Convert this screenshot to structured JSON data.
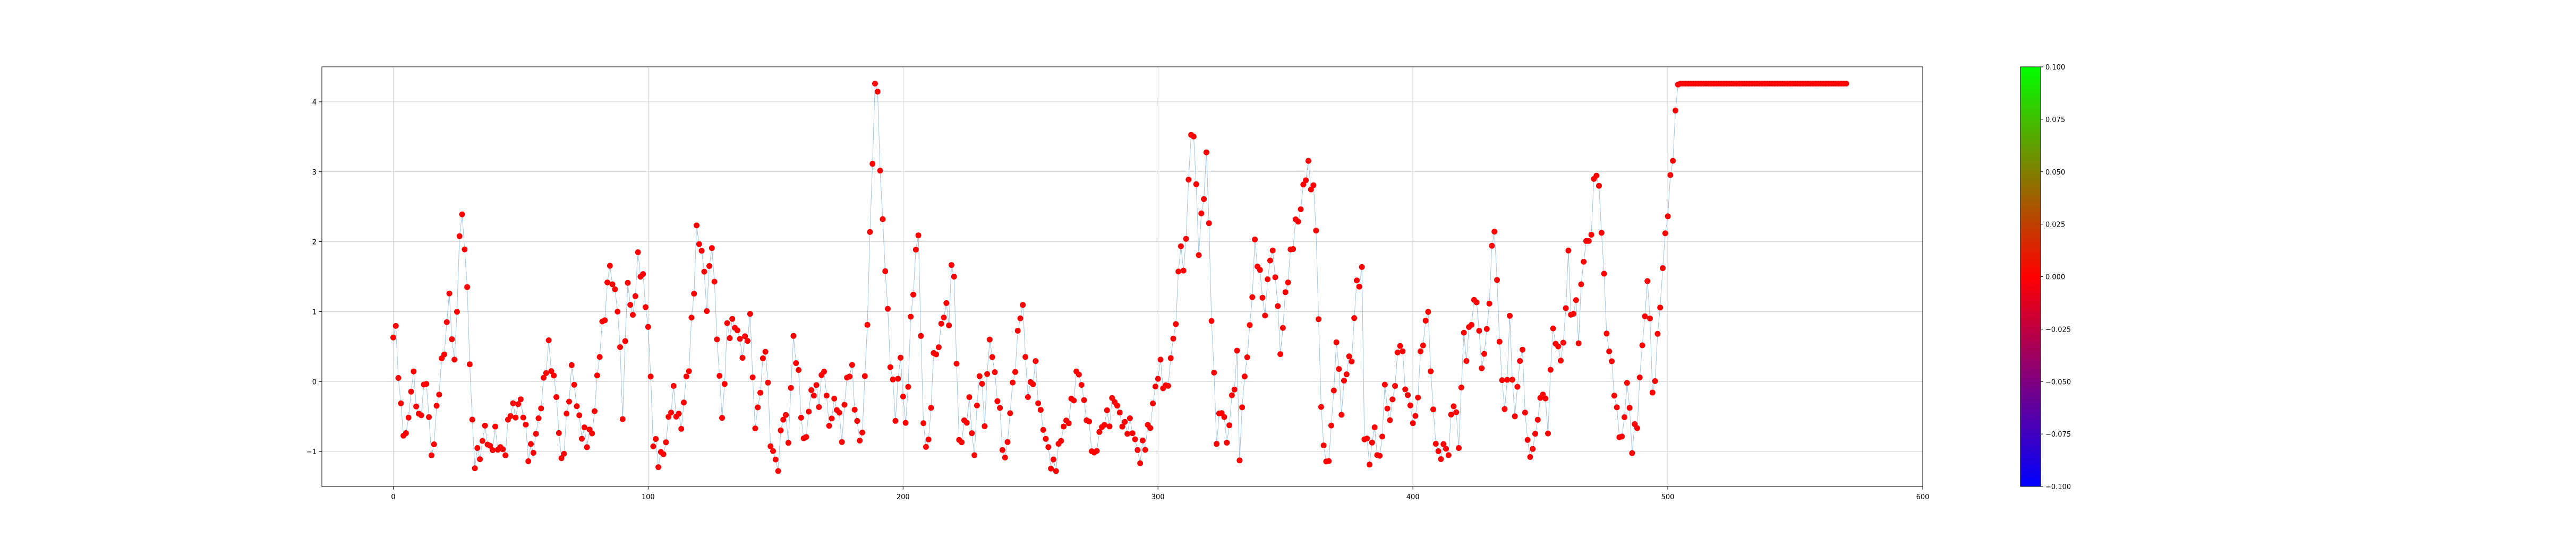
{
  "chart_data": {
    "type": "scatter",
    "title": "",
    "xlabel": "",
    "ylabel": "",
    "xlim": [
      -28,
      600
    ],
    "ylim": [
      -1.5,
      4.5
    ],
    "grid": true,
    "x_ticks": [
      0,
      100,
      200,
      300,
      400,
      500,
      600
    ],
    "y_ticks": [
      -1,
      0,
      1,
      2,
      3,
      4
    ],
    "x_tick_labels": [
      "0",
      "100",
      "200",
      "300",
      "400",
      "500",
      "600"
    ],
    "y_tick_labels": [
      "−1",
      "0",
      "1",
      "2",
      "3",
      "4"
    ],
    "marker_color": "#ff0000",
    "line_color": "#9ec5e8",
    "anchors": [
      [
        0,
        0.55
      ],
      [
        1,
        0.7
      ],
      [
        3,
        -0.35
      ],
      [
        5,
        -0.85
      ],
      [
        8,
        0.1
      ],
      [
        10,
        -0.5
      ],
      [
        13,
        -0.05
      ],
      [
        15,
        -1.05
      ],
      [
        18,
        -0.1
      ],
      [
        20,
        0.4
      ],
      [
        22,
        1.3
      ],
      [
        24,
        0.2
      ],
      [
        26,
        1.9
      ],
      [
        27,
        2.45
      ],
      [
        29,
        1.4
      ],
      [
        31,
        -0.7
      ],
      [
        32,
        -1.2
      ],
      [
        34,
        -1.0
      ],
      [
        36,
        -0.6
      ],
      [
        38,
        -1.1
      ],
      [
        40,
        -0.75
      ],
      [
        44,
        -1.05
      ],
      [
        46,
        -0.4
      ],
      [
        50,
        -0.3
      ],
      [
        53,
        -1.0
      ],
      [
        56,
        -0.8
      ],
      [
        58,
        -0.4
      ],
      [
        60,
        0.3
      ],
      [
        61,
        0.55
      ],
      [
        64,
        -0.3
      ],
      [
        66,
        -1.15
      ],
      [
        70,
        0.1
      ],
      [
        73,
        -0.5
      ],
      [
        76,
        -0.9
      ],
      [
        78,
        -0.75
      ],
      [
        81,
        0.5
      ],
      [
        83,
        0.9
      ],
      [
        85,
        1.7
      ],
      [
        88,
        1.1
      ],
      [
        90,
        -0.5
      ],
      [
        92,
        1.5
      ],
      [
        94,
        0.9
      ],
      [
        96,
        1.65
      ],
      [
        98,
        1.5
      ],
      [
        100,
        0.85
      ],
      [
        102,
        -0.9
      ],
      [
        104,
        -1.1
      ],
      [
        107,
        -0.85
      ],
      [
        110,
        -0.2
      ],
      [
        113,
        -0.6
      ],
      [
        116,
        0.2
      ],
      [
        118,
        1.45
      ],
      [
        119,
        2.2
      ],
      [
        121,
        1.8
      ],
      [
        123,
        1.1
      ],
      [
        125,
        2.1
      ],
      [
        127,
        0.6
      ],
      [
        129,
        -0.6
      ],
      [
        131,
        0.8
      ],
      [
        134,
        0.75
      ],
      [
        137,
        0.5
      ],
      [
        140,
        0.8
      ],
      [
        142,
        -0.7
      ],
      [
        144,
        0.0
      ],
      [
        146,
        0.5
      ],
      [
        148,
        -0.9
      ],
      [
        151,
        -1.15
      ],
      [
        153,
        -0.5
      ],
      [
        155,
        -0.8
      ],
      [
        157,
        0.7
      ],
      [
        159,
        0.0
      ],
      [
        161,
        -0.95
      ],
      [
        164,
        -0.1
      ],
      [
        167,
        -0.3
      ],
      [
        169,
        0.3
      ],
      [
        171,
        -0.65
      ],
      [
        174,
        -0.3
      ],
      [
        176,
        -0.7
      ],
      [
        178,
        0.0
      ],
      [
        180,
        0.1
      ],
      [
        182,
        -0.6
      ],
      [
        184,
        -0.8
      ],
      [
        186,
        0.8
      ],
      [
        188,
        3.3
      ],
      [
        189,
        4.25
      ],
      [
        190,
        4.25
      ],
      [
        191,
        2.9
      ],
      [
        193,
        1.6
      ],
      [
        195,
        0.4
      ],
      [
        197,
        -0.5
      ],
      [
        199,
        0.3
      ],
      [
        201,
        -0.6
      ],
      [
        203,
        0.8
      ],
      [
        205,
        1.75
      ],
      [
        206,
        2.1
      ],
      [
        208,
        -0.6
      ],
      [
        210,
        -1.0
      ],
      [
        212,
        0.3
      ],
      [
        214,
        0.6
      ],
      [
        216,
        1.0
      ],
      [
        218,
        0.85
      ],
      [
        219,
        1.6
      ],
      [
        220,
        1.6
      ],
      [
        222,
        -0.9
      ],
      [
        224,
        -0.75
      ],
      [
        226,
        -0.25
      ],
      [
        228,
        -1.0
      ],
      [
        230,
        0.1
      ],
      [
        232,
        -0.5
      ],
      [
        234,
        0.7
      ],
      [
        236,
        0.0
      ],
      [
        238,
        -0.5
      ],
      [
        240,
        -1.1
      ],
      [
        242,
        -0.5
      ],
      [
        244,
        0.2
      ],
      [
        246,
        1.1
      ],
      [
        247,
        1.05
      ],
      [
        249,
        -0.3
      ],
      [
        252,
        0.25
      ],
      [
        254,
        -0.5
      ],
      [
        256,
        -0.9
      ],
      [
        258,
        -1.1
      ],
      [
        260,
        -1.2
      ],
      [
        263,
        -0.7
      ],
      [
        266,
        -0.3
      ],
      [
        269,
        0.1
      ],
      [
        272,
        -0.4
      ],
      [
        275,
        -1.2
      ],
      [
        277,
        -0.7
      ],
      [
        279,
        -0.5
      ],
      [
        281,
        -0.6
      ],
      [
        283,
        -0.2
      ],
      [
        285,
        -0.4
      ],
      [
        287,
        -0.75
      ],
      [
        290,
        -0.6
      ],
      [
        293,
        -1.15
      ],
      [
        295,
        -0.9
      ],
      [
        297,
        -0.5
      ],
      [
        299,
        -0.1
      ],
      [
        301,
        0.15
      ],
      [
        303,
        -0.1
      ],
      [
        305,
        0.3
      ],
      [
        307,
        0.8
      ],
      [
        309,
        2.1
      ],
      [
        310,
        1.55
      ],
      [
        312,
        2.8
      ],
      [
        313,
        3.45
      ],
      [
        314,
        3.5
      ],
      [
        316,
        2.0
      ],
      [
        318,
        2.7
      ],
      [
        319,
        3.15
      ],
      [
        320,
        2.2
      ],
      [
        321,
        0.9
      ],
      [
        323,
        -0.7
      ],
      [
        325,
        -0.4
      ],
      [
        327,
        -0.9
      ],
      [
        329,
        -0.2
      ],
      [
        331,
        0.3
      ],
      [
        332,
        -1.1
      ],
      [
        334,
        0.1
      ],
      [
        336,
        0.8
      ],
      [
        338,
        1.85
      ],
      [
        340,
        1.5
      ],
      [
        342,
        1.05
      ],
      [
        344,
        1.8
      ],
      [
        346,
        1.55
      ],
      [
        348,
        0.5
      ],
      [
        350,
        1.2
      ],
      [
        352,
        1.7
      ],
      [
        354,
        2.3
      ],
      [
        356,
        2.5
      ],
      [
        358,
        2.9
      ],
      [
        359,
        3.0
      ],
      [
        361,
        2.8
      ],
      [
        362,
        2.25
      ],
      [
        364,
        -0.5
      ],
      [
        366,
        -1.25
      ],
      [
        368,
        -0.65
      ],
      [
        370,
        0.5
      ],
      [
        372,
        -0.4
      ],
      [
        374,
        0.3
      ],
      [
        376,
        0.3
      ],
      [
        378,
        1.35
      ],
      [
        380,
        1.6
      ],
      [
        381,
        -0.65
      ],
      [
        383,
        -1.2
      ],
      [
        385,
        -0.7
      ],
      [
        387,
        -1.1
      ],
      [
        389,
        -0.2
      ],
      [
        391,
        -0.6
      ],
      [
        393,
        0.1
      ],
      [
        395,
        0.6
      ],
      [
        397,
        -0.1
      ],
      [
        399,
        -0.3
      ],
      [
        401,
        -0.6
      ],
      [
        403,
        0.25
      ],
      [
        405,
        0.9
      ],
      [
        406,
        1.05
      ],
      [
        408,
        -0.55
      ],
      [
        410,
        -1.15
      ],
      [
        412,
        -0.85
      ],
      [
        414,
        -1.0
      ],
      [
        416,
        -0.3
      ],
      [
        418,
        -0.8
      ],
      [
        420,
        0.7
      ],
      [
        421,
        0.3
      ],
      [
        423,
        0.9
      ],
      [
        425,
        1.3
      ],
      [
        427,
        0.15
      ],
      [
        429,
        0.6
      ],
      [
        431,
        1.9
      ],
      [
        432,
        2.3
      ],
      [
        434,
        0.5
      ],
      [
        436,
        -0.5
      ],
      [
        438,
        0.9
      ],
      [
        440,
        -0.6
      ],
      [
        442,
        0.3
      ],
      [
        443,
        0.4
      ],
      [
        445,
        -0.9
      ],
      [
        447,
        -1.1
      ],
      [
        449,
        -0.5
      ],
      [
        451,
        0.0
      ],
      [
        453,
        -0.7
      ],
      [
        455,
        0.75
      ],
      [
        457,
        0.5
      ],
      [
        459,
        0.4
      ],
      [
        461,
        1.75
      ],
      [
        462,
        1.0
      ],
      [
        464,
        1.15
      ],
      [
        465,
        0.65
      ],
      [
        467,
        1.75
      ],
      [
        469,
        2.1
      ],
      [
        470,
        2.2
      ],
      [
        471,
        2.85
      ],
      [
        472,
        3.0
      ],
      [
        474,
        2.2
      ],
      [
        476,
        0.8
      ],
      [
        478,
        0.2
      ],
      [
        480,
        -0.55
      ],
      [
        482,
        -0.8
      ],
      [
        484,
        0.0
      ],
      [
        486,
        -1.0
      ],
      [
        488,
        -0.5
      ],
      [
        490,
        0.6
      ],
      [
        491,
        0.9
      ],
      [
        492,
        1.3
      ],
      [
        493,
        0.95
      ],
      [
        494,
        -0.25
      ],
      [
        495,
        0.2
      ]
    ]
  }
}
